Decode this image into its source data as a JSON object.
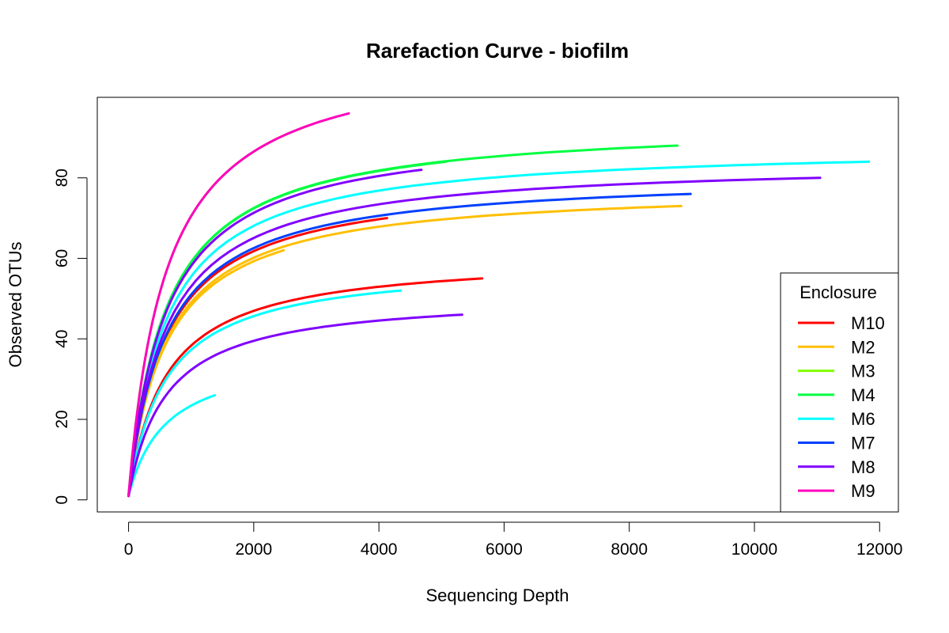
{
  "chart_data": {
    "type": "line",
    "title": "Rarefaction Curve - biofilm",
    "xlabel": "Sequencing Depth",
    "ylabel": "Observed OTUs",
    "xlim": [
      -500,
      12300
    ],
    "ylim": [
      -3,
      100
    ],
    "xticks": [
      0,
      2000,
      4000,
      6000,
      8000,
      10000,
      12000
    ],
    "yticks": [
      0,
      20,
      40,
      60,
      80
    ],
    "grid": false,
    "legend": {
      "title": "Enclosure",
      "placement": "bottom-right",
      "entries": [
        {
          "label": "M10",
          "color": "#FF0000"
        },
        {
          "label": "M2",
          "color": "#FFBF00"
        },
        {
          "label": "M3",
          "color": "#80FF00"
        },
        {
          "label": "M4",
          "color": "#00FF40"
        },
        {
          "label": "M6",
          "color": "#00FFFF"
        },
        {
          "label": "M7",
          "color": "#0040FF"
        },
        {
          "label": "M8",
          "color": "#8000FF"
        },
        {
          "label": "M9",
          "color": "#FF00BF"
        }
      ]
    },
    "series": [
      {
        "name": "M10",
        "color": "#FF0000",
        "max_depth": 4130,
        "max_otu": 70
      },
      {
        "name": "M10",
        "color": "#FF0000",
        "max_depth": 5650,
        "max_otu": 55
      },
      {
        "name": "M2",
        "color": "#FFBF00",
        "max_depth": 2480,
        "max_otu": 62
      },
      {
        "name": "M2",
        "color": "#FFBF00",
        "max_depth": 8830,
        "max_otu": 73
      },
      {
        "name": "M3",
        "color": "#80FF00",
        "max_depth": 2880,
        "max_otu": 93
      },
      {
        "name": "M4",
        "color": "#00FF40",
        "max_depth": 5070,
        "max_otu": 84
      },
      {
        "name": "M4",
        "color": "#00FF40",
        "max_depth": 8770,
        "max_otu": 88
      },
      {
        "name": "M6",
        "color": "#00FFFF",
        "max_depth": 11830,
        "max_otu": 84
      },
      {
        "name": "M6",
        "color": "#00FFFF",
        "max_depth": 4350,
        "max_otu": 52
      },
      {
        "name": "M6",
        "color": "#00FFFF",
        "max_depth": 1380,
        "max_otu": 26
      },
      {
        "name": "M7",
        "color": "#0040FF",
        "max_depth": 8980,
        "max_otu": 76
      },
      {
        "name": "M8",
        "color": "#8000FF",
        "max_depth": 11050,
        "max_otu": 80
      },
      {
        "name": "M8",
        "color": "#8000FF",
        "max_depth": 4680,
        "max_otu": 82
      },
      {
        "name": "M8",
        "color": "#8000FF",
        "max_depth": 5330,
        "max_otu": 46
      },
      {
        "name": "M9",
        "color": "#FF00BF",
        "max_depth": 3520,
        "max_otu": 96
      }
    ]
  }
}
